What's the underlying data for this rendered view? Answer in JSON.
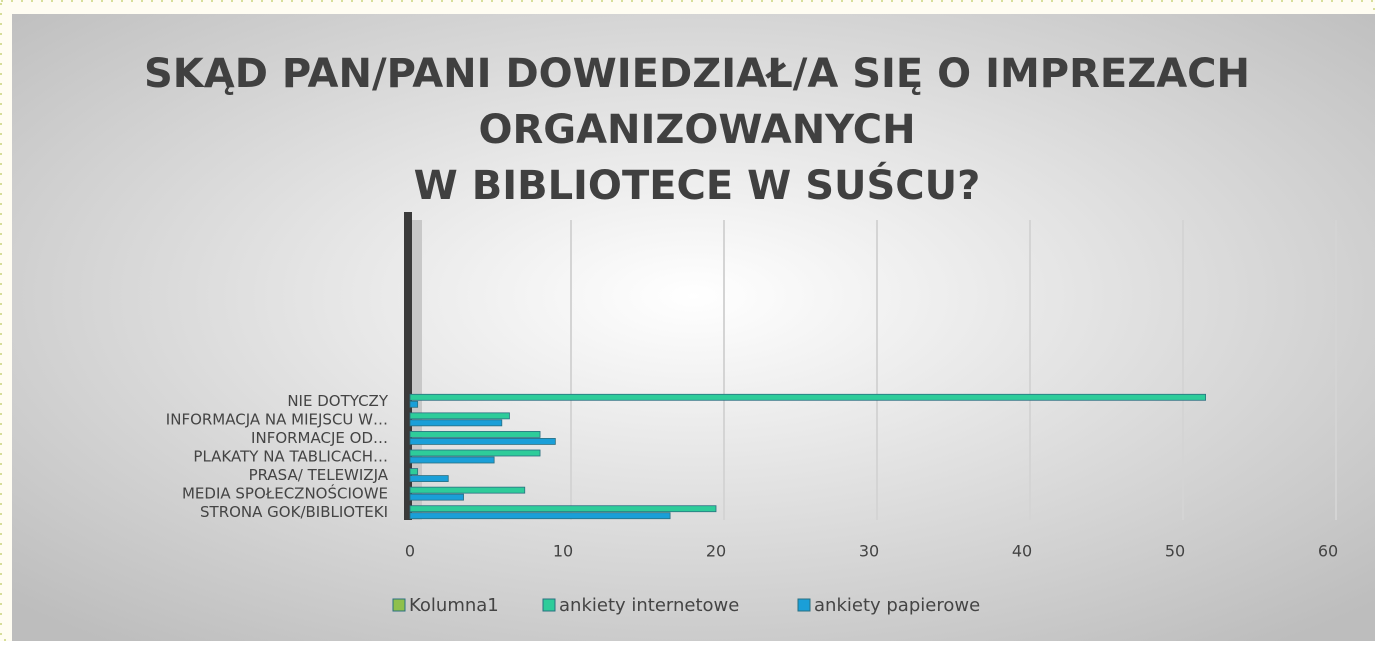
{
  "chart_data": {
    "type": "bar",
    "orientation": "horizontal",
    "title": [
      "SKĄD PAN/PANI DOWIEDZIAŁ/A SIĘ O IMPREZACH",
      "ORGANIZOWANYCH",
      "W BIBLIOTECE W SUŚCU?"
    ],
    "categories": [
      "STRONA GOK/BIBLIOTEKI",
      "MEDIA SPOŁECZNOŚCIOWE",
      "PRASA/ TELEWIZJA",
      "PLAKATY NA TABLICACH…",
      "INFORMACJE OD…",
      "INFORMACJA NA MIEJSCU W…",
      "NIE DOTYCZY"
    ],
    "series": [
      {
        "name": "Kolumna1",
        "color": "#8fc04c",
        "values": [
          null,
          null,
          null,
          null,
          null,
          null,
          null
        ]
      },
      {
        "name": "ankiety internetowe",
        "color": "#2ecc9a",
        "values": [
          20,
          7.5,
          0.5,
          8.5,
          8.5,
          6.5,
          52
        ]
      },
      {
        "name": "ankiety papierowe",
        "color": "#1a9fd8",
        "values": [
          17,
          3.5,
          2.5,
          5.5,
          9.5,
          6,
          0.5
        ]
      }
    ],
    "xlim": [
      0,
      60
    ],
    "xticks": [
      0,
      10,
      20,
      30,
      40,
      50,
      60
    ],
    "grid": true,
    "legend": "bottom"
  }
}
